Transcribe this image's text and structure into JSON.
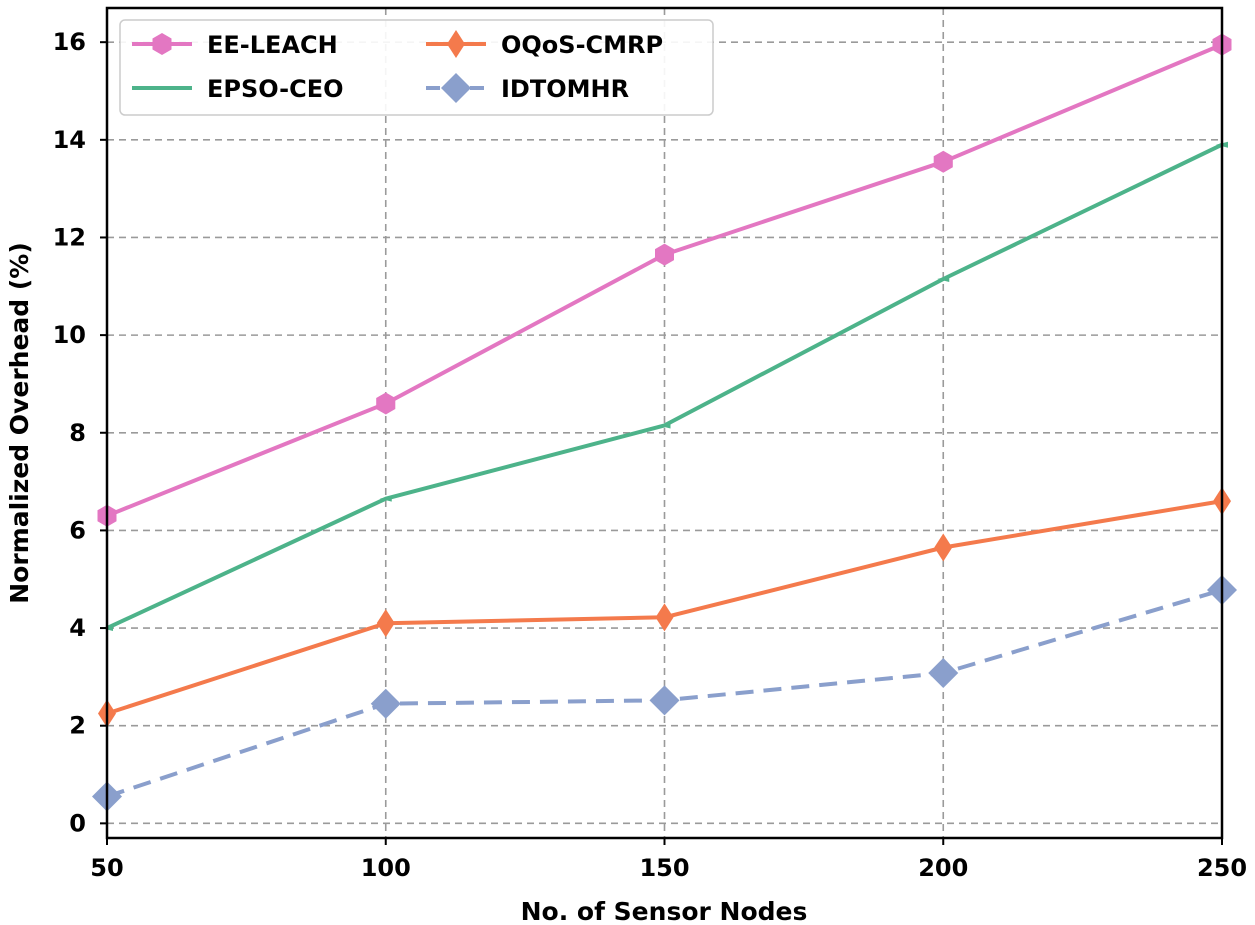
{
  "chart_data": {
    "type": "line",
    "title": "",
    "xlabel": "No. of Sensor Nodes",
    "ylabel": "Normalized Overhead (%)",
    "x": [
      50,
      100,
      150,
      200,
      250
    ],
    "xlim": [
      50,
      250
    ],
    "ylim": [
      -0.3,
      16.7
    ],
    "xticks": [
      50,
      100,
      150,
      200,
      250
    ],
    "yticks": [
      0,
      2,
      4,
      6,
      8,
      10,
      12,
      14,
      16
    ],
    "grid": true,
    "legend_position": "top-left",
    "series": [
      {
        "name": "EE-LEACH",
        "values": [
          6.3,
          8.6,
          11.65,
          13.55,
          15.95
        ],
        "color": "#e377c2",
        "marker": "hexagon",
        "dashed": false
      },
      {
        "name": "EPSO-CEO",
        "values": [
          4.0,
          6.65,
          8.15,
          11.15,
          13.9
        ],
        "color": "#4db38a",
        "marker": "tick",
        "dashed": false
      },
      {
        "name": "OQoS-CMRP",
        "values": [
          2.25,
          4.1,
          4.22,
          5.65,
          6.6
        ],
        "color": "#f47a4c",
        "marker": "thin-diamond",
        "dashed": false
      },
      {
        "name": "IDTOMHR",
        "values": [
          0.55,
          2.45,
          2.52,
          3.08,
          4.78
        ],
        "color": "#8a9fcc",
        "marker": "diamond",
        "dashed": true
      }
    ]
  }
}
